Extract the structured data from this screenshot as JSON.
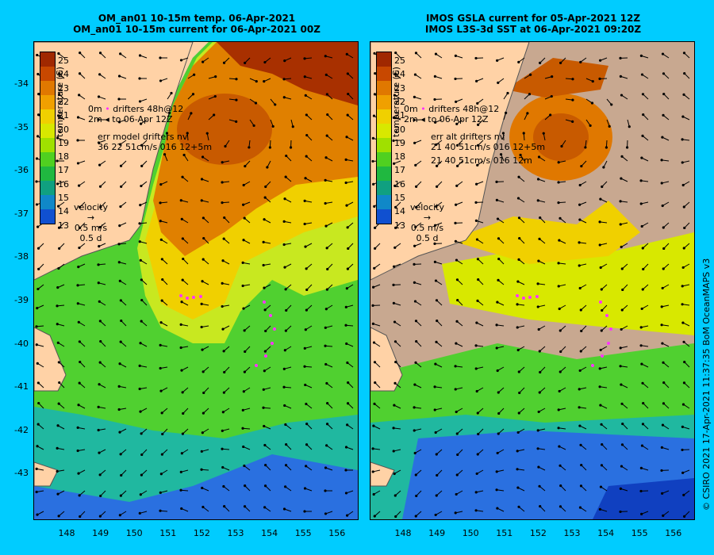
{
  "left_panel": {
    "title_line1": "OM_an01 10-15m temp. 06-Apr-2021",
    "title_line2": "OM_an01 10-15m current for 06-Apr-2021 00Z",
    "legend_line1": "drifters 48h@12",
    "legend_line2": "to 06-Apr 12Z",
    "legend_prefix1": "0m",
    "legend_prefix2": "2m",
    "err_label": "err model drifters nv",
    "err_value": "36 22 51cm/s 016 12+5m",
    "velocity_label": "velocity",
    "velocity_scale": "0.5 m/s",
    "velocity_days": "0.5 d"
  },
  "right_panel": {
    "title_line1": "IMOS GSLA current for 05-Apr-2021 12Z",
    "title_line2": "IMOS L3S-3d SST at 06-Apr-2021 09:20Z",
    "legend_line1": "drifters 48h@12",
    "legend_line2": "to 06-Apr 12Z",
    "legend_prefix1": "0m",
    "legend_prefix2": "2m",
    "err_label": "err alt drifters nv",
    "err_value1": "21 40 51cm/s 016 12+5m",
    "err_value2": "21 40 51cm/s 016 12m",
    "velocity_label": "velocity",
    "velocity_scale": "0.5 m/s",
    "velocity_days": "0.5 d"
  },
  "colorbar": {
    "title": "temperature (C)",
    "labels": [
      "25",
      "24",
      "23",
      "22",
      "21",
      "20",
      "19",
      "18",
      "17",
      "16",
      "15",
      "14",
      "13"
    ],
    "colors": [
      "#a02800",
      "#c84800",
      "#e07800",
      "#f0a000",
      "#f0d000",
      "#d8e800",
      "#a0e000",
      "#50d020",
      "#20b840",
      "#10a080",
      "#1088c8",
      "#1050d0",
      "#0820a0",
      "#000c70"
    ]
  },
  "axes": {
    "lat_labels": [
      "-34",
      "-35",
      "-36",
      "-37",
      "-38",
      "-39",
      "-40",
      "-41",
      "-42",
      "-43"
    ],
    "lon_labels": [
      "148",
      "149",
      "150",
      "151",
      "152",
      "153",
      "154",
      "155",
      "156"
    ]
  },
  "credit": "© CSIRO 2021  17-Apr-2021 11:37:35 BoM OceanMAPS v3",
  "colors": {
    "background": "#00ccff",
    "land": "#ffd2a6",
    "cloud": "#c8a890",
    "drifter": "#ff33ff"
  }
}
